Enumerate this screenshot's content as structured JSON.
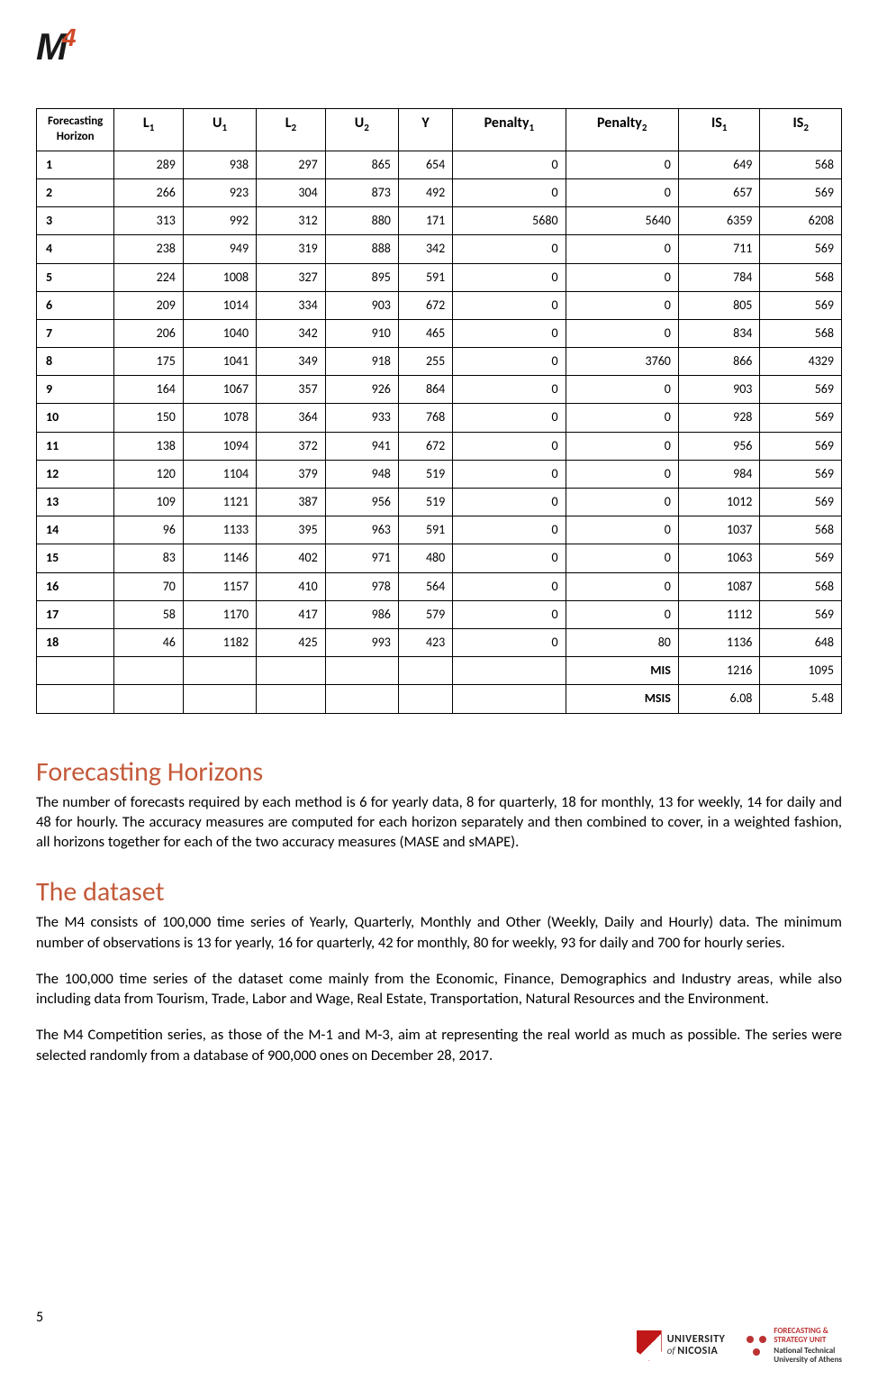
{
  "logo": {
    "prefix": "M",
    "exponent": "4"
  },
  "table": {
    "headers": {
      "fh": "Forecasting Horizon",
      "l1": "L",
      "l1_sub": "1",
      "u1": "U",
      "u1_sub": "1",
      "l2": "L",
      "l2_sub": "2",
      "u2": "U",
      "u2_sub": "2",
      "y": "Y",
      "p1": "Penalty",
      "p1_sub": "1",
      "p2": "Penalty",
      "p2_sub": "2",
      "is1": "IS",
      "is1_sub": "1",
      "is2": "IS",
      "is2_sub": "2"
    },
    "rows": [
      {
        "h": "1",
        "l1": "289",
        "u1": "938",
        "l2": "297",
        "u2": "865",
        "y": "654",
        "p1": "0",
        "p2": "0",
        "is1": "649",
        "is2": "568"
      },
      {
        "h": "2",
        "l1": "266",
        "u1": "923",
        "l2": "304",
        "u2": "873",
        "y": "492",
        "p1": "0",
        "p2": "0",
        "is1": "657",
        "is2": "569"
      },
      {
        "h": "3",
        "l1": "313",
        "u1": "992",
        "l2": "312",
        "u2": "880",
        "y": "171",
        "p1": "5680",
        "p2": "5640",
        "is1": "6359",
        "is2": "6208"
      },
      {
        "h": "4",
        "l1": "238",
        "u1": "949",
        "l2": "319",
        "u2": "888",
        "y": "342",
        "p1": "0",
        "p2": "0",
        "is1": "711",
        "is2": "569"
      },
      {
        "h": "5",
        "l1": "224",
        "u1": "1008",
        "l2": "327",
        "u2": "895",
        "y": "591",
        "p1": "0",
        "p2": "0",
        "is1": "784",
        "is2": "568"
      },
      {
        "h": "6",
        "l1": "209",
        "u1": "1014",
        "l2": "334",
        "u2": "903",
        "y": "672",
        "p1": "0",
        "p2": "0",
        "is1": "805",
        "is2": "569"
      },
      {
        "h": "7",
        "l1": "206",
        "u1": "1040",
        "l2": "342",
        "u2": "910",
        "y": "465",
        "p1": "0",
        "p2": "0",
        "is1": "834",
        "is2": "568"
      },
      {
        "h": "8",
        "l1": "175",
        "u1": "1041",
        "l2": "349",
        "u2": "918",
        "y": "255",
        "p1": "0",
        "p2": "3760",
        "is1": "866",
        "is2": "4329"
      },
      {
        "h": "9",
        "l1": "164",
        "u1": "1067",
        "l2": "357",
        "u2": "926",
        "y": "864",
        "p1": "0",
        "p2": "0",
        "is1": "903",
        "is2": "569"
      },
      {
        "h": "10",
        "l1": "150",
        "u1": "1078",
        "l2": "364",
        "u2": "933",
        "y": "768",
        "p1": "0",
        "p2": "0",
        "is1": "928",
        "is2": "569"
      },
      {
        "h": "11",
        "l1": "138",
        "u1": "1094",
        "l2": "372",
        "u2": "941",
        "y": "672",
        "p1": "0",
        "p2": "0",
        "is1": "956",
        "is2": "569"
      },
      {
        "h": "12",
        "l1": "120",
        "u1": "1104",
        "l2": "379",
        "u2": "948",
        "y": "519",
        "p1": "0",
        "p2": "0",
        "is1": "984",
        "is2": "569"
      },
      {
        "h": "13",
        "l1": "109",
        "u1": "1121",
        "l2": "387",
        "u2": "956",
        "y": "519",
        "p1": "0",
        "p2": "0",
        "is1": "1012",
        "is2": "569"
      },
      {
        "h": "14",
        "l1": "96",
        "u1": "1133",
        "l2": "395",
        "u2": "963",
        "y": "591",
        "p1": "0",
        "p2": "0",
        "is1": "1037",
        "is2": "568"
      },
      {
        "h": "15",
        "l1": "83",
        "u1": "1146",
        "l2": "402",
        "u2": "971",
        "y": "480",
        "p1": "0",
        "p2": "0",
        "is1": "1063",
        "is2": "569"
      },
      {
        "h": "16",
        "l1": "70",
        "u1": "1157",
        "l2": "410",
        "u2": "978",
        "y": "564",
        "p1": "0",
        "p2": "0",
        "is1": "1087",
        "is2": "568"
      },
      {
        "h": "17",
        "l1": "58",
        "u1": "1170",
        "l2": "417",
        "u2": "986",
        "y": "579",
        "p1": "0",
        "p2": "0",
        "is1": "1112",
        "is2": "569"
      },
      {
        "h": "18",
        "l1": "46",
        "u1": "1182",
        "l2": "425",
        "u2": "993",
        "y": "423",
        "p1": "0",
        "p2": "80",
        "is1": "1136",
        "is2": "648"
      }
    ],
    "summary": [
      {
        "label": "MIS",
        "is1": "1216",
        "is2": "1095"
      },
      {
        "label": "MSIS",
        "is1": "6.08",
        "is2": "5.48"
      }
    ]
  },
  "sections": {
    "fh_title": "Forecasting Horizons",
    "fh_body": "The number of forecasts required by each method is 6 for yearly data, 8 for quarterly, 18 for monthly, 13 for weekly, 14 for daily and 48 for hourly. The accuracy measures are computed for each horizon separately and then combined to cover, in a weighted fashion, all horizons together for each of the two accuracy measures (MASE and sMAPE).",
    "ds_title": "The dataset",
    "ds_p1": "The M4 consists of 100,000 time series of Yearly, Quarterly, Monthly and Other (Weekly, Daily and Hourly) data. The minimum number of observations is 13 for yearly, 16 for quarterly, 42 for monthly, 80 for weekly, 93 for daily and 700 for hourly series.",
    "ds_p2": "The 100,000 time series of the dataset come mainly from the Economic, Finance, Demographics and Industry areas, while also including data from Tourism, Trade, Labor and Wage, Real Estate, Transportation, Natural Resources and the Environment.",
    "ds_p3": "The M4 Competition series, as those of the M-1 and M-3, aim at representing the real world as much as possible. The series were selected randomly from a database of 900,000 ones on December 28, 2017."
  },
  "page_number": "5",
  "footer": {
    "unic_top": "UNIVERSITY",
    "unic_of": "of ",
    "unic_bot": "NICOSIA",
    "ntua_l1": "FORECASTING &",
    "ntua_l2": "STRATEGY UNIT",
    "ntua_l3": "National Technical",
    "ntua_l4": "University of Athens"
  }
}
